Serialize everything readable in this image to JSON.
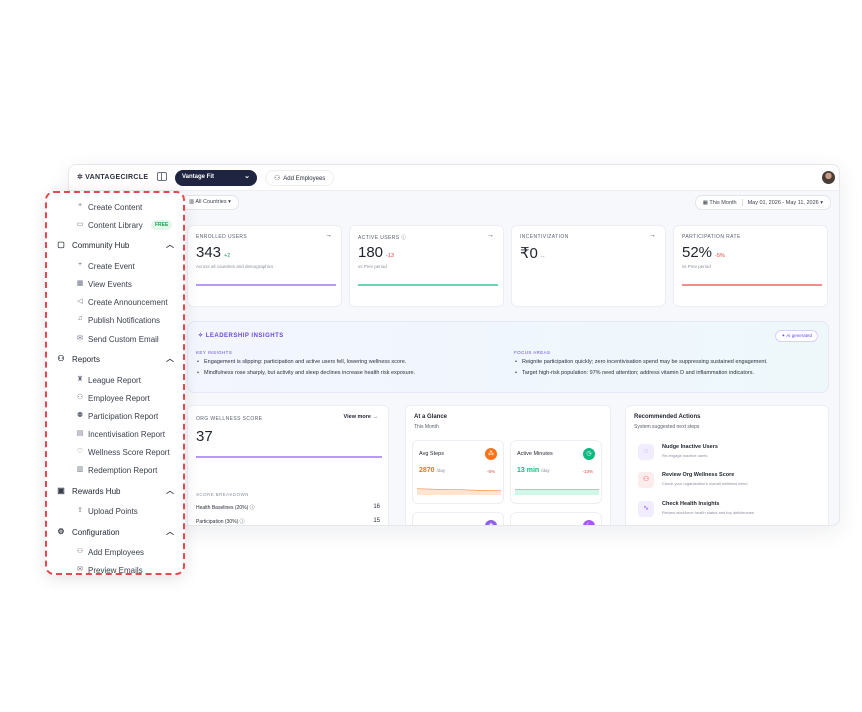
{
  "topbar": {
    "logo": "VANTAGECIRCLE",
    "product": "Vantage Fit",
    "add_employees": "Add Employees"
  },
  "filters": {
    "countries": "All Countries",
    "period": "This Month",
    "date_range": "May 01, 2026 - May 11, 2026"
  },
  "stats": [
    {
      "label": "ENROLLED USERS",
      "value": "343",
      "delta": "+2",
      "sub": "Across all countries and demographics",
      "color": "#8b5cf6"
    },
    {
      "label": "ACTIVE USERS",
      "value": "180",
      "delta": "-13",
      "sub": "vs Prev period",
      "color": "#10b981"
    },
    {
      "label": "INCENTIVIZATION",
      "value": "₹0",
      "delta": "--",
      "sub": "",
      "color": "#cfd3dc"
    },
    {
      "label": "PARTICIPATION RATE",
      "value": "52%",
      "delta": "-5%",
      "sub": "vs Prev period",
      "color": "#ef4444"
    }
  ],
  "insights": {
    "title": "LEADERSHIP INSIGHTS",
    "badge": "AI generated",
    "key_header": "KEY INSIGHTS",
    "key": [
      "Engagement is slipping: participation and active users fell, lowering wellness score.",
      "Mindfulness rose sharply, but activity and sleep declines increase health risk exposure."
    ],
    "focus_header": "FOCUS AREAS",
    "focus": [
      "Reignite participation quickly; zero incentivisation spend may be suppressing sustained engagement.",
      "Target high-risk population: 97% need attention; address vitamin D and inflammation indicators."
    ]
  },
  "wellness": {
    "label": "ORG WELLNESS SCORE",
    "view_more": "View more →",
    "score": "37",
    "breakdown_label": "SCORE BREAKDOWN",
    "rows": [
      {
        "label": "Health Baselines (20%)",
        "value": "16"
      },
      {
        "label": "Participation (30%)",
        "value": "15"
      }
    ]
  },
  "glance": {
    "title": "At a Glance",
    "sub": "This Month",
    "cards": [
      {
        "title": "Avg Steps",
        "value": "2870",
        "unit": "/day",
        "delta": "-5%",
        "color": "#f97316"
      },
      {
        "title": "Active Minutes",
        "value": "13 min",
        "unit": "/day",
        "delta": "-13%",
        "color": "#10b981"
      }
    ]
  },
  "actions": {
    "title": "Recommended Actions",
    "sub": "System suggested next steps",
    "items": [
      {
        "title": "Nudge Inactive Users",
        "sub": "Re-engage inactive users",
        "color": "#8b5cf6",
        "bg": "#f1ecfe"
      },
      {
        "title": "Review Org Wellness Score",
        "sub": "Check your organization's overall wellness trend",
        "color": "#ef4444",
        "bg": "#fdecec"
      },
      {
        "title": "Check Health Insights",
        "sub": "Review workforce health status and top deficiencies",
        "color": "#8b5cf6",
        "bg": "#f1ecfe"
      }
    ]
  },
  "sidebar": {
    "create_content": "Create Content",
    "content_library": "Content Library",
    "free_badge": "FREE",
    "community_hub": "Community Hub",
    "create_event": "Create Event",
    "view_events": "View Events",
    "create_announcement": "Create Announcement",
    "publish_notifications": "Publish Notifications",
    "send_custom_email": "Send Custom Email",
    "reports": "Reports",
    "league_report": "League Report",
    "employee_report": "Employee Report",
    "participation_report": "Participation Report",
    "incentivisation_report": "Incentivisation Report",
    "wellness_score_report": "Wellness Score Report",
    "redemption_report": "Redemption Report",
    "rewards_hub": "Rewards Hub",
    "upload_points": "Upload Points",
    "configuration": "Configuration",
    "add_employees": "Add Employees",
    "preview_emails": "Preview Emails"
  }
}
